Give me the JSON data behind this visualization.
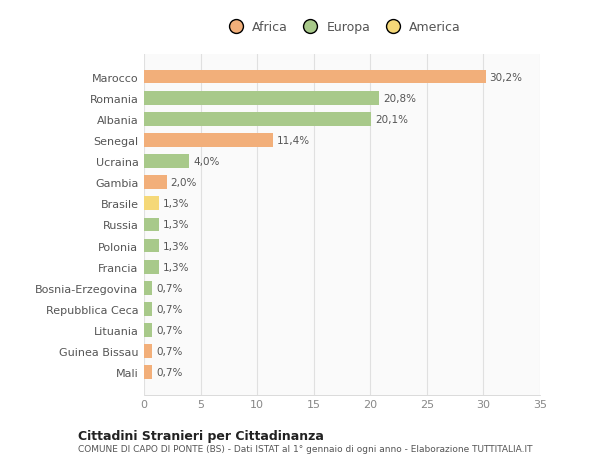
{
  "countries": [
    "Marocco",
    "Romania",
    "Albania",
    "Senegal",
    "Ucraina",
    "Gambia",
    "Brasile",
    "Russia",
    "Polonia",
    "Francia",
    "Bosnia-Erzegovina",
    "Repubblica Ceca",
    "Lituania",
    "Guinea Bissau",
    "Mali"
  ],
  "values": [
    30.2,
    20.8,
    20.1,
    11.4,
    4.0,
    2.0,
    1.3,
    1.3,
    1.3,
    1.3,
    0.7,
    0.7,
    0.7,
    0.7,
    0.7
  ],
  "labels": [
    "30,2%",
    "20,8%",
    "20,1%",
    "11,4%",
    "4,0%",
    "2,0%",
    "1,3%",
    "1,3%",
    "1,3%",
    "1,3%",
    "0,7%",
    "0,7%",
    "0,7%",
    "0,7%",
    "0,7%"
  ],
  "continents": [
    "Africa",
    "Europa",
    "Europa",
    "Africa",
    "Europa",
    "Africa",
    "America",
    "Europa",
    "Europa",
    "Europa",
    "Europa",
    "Europa",
    "Europa",
    "Africa",
    "Africa"
  ],
  "colors": {
    "Africa": "#F2AF7A",
    "Europa": "#A8C98A",
    "America": "#F5D878"
  },
  "legend_labels": [
    "Africa",
    "Europa",
    "America"
  ],
  "legend_colors": [
    "#F2AF7A",
    "#A8C98A",
    "#F5D878"
  ],
  "xlim": [
    0,
    35
  ],
  "xticks": [
    0,
    5,
    10,
    15,
    20,
    25,
    30,
    35
  ],
  "title": "Cittadini Stranieri per Cittadinanza",
  "subtitle": "COMUNE DI CAPO DI PONTE (BS) - Dati ISTAT al 1° gennaio di ogni anno - Elaborazione TUTTITALIA.IT",
  "background_color": "#FFFFFF",
  "plot_background": "#FAFAFA",
  "grid_color": "#E0E0E0",
  "bar_height": 0.65
}
